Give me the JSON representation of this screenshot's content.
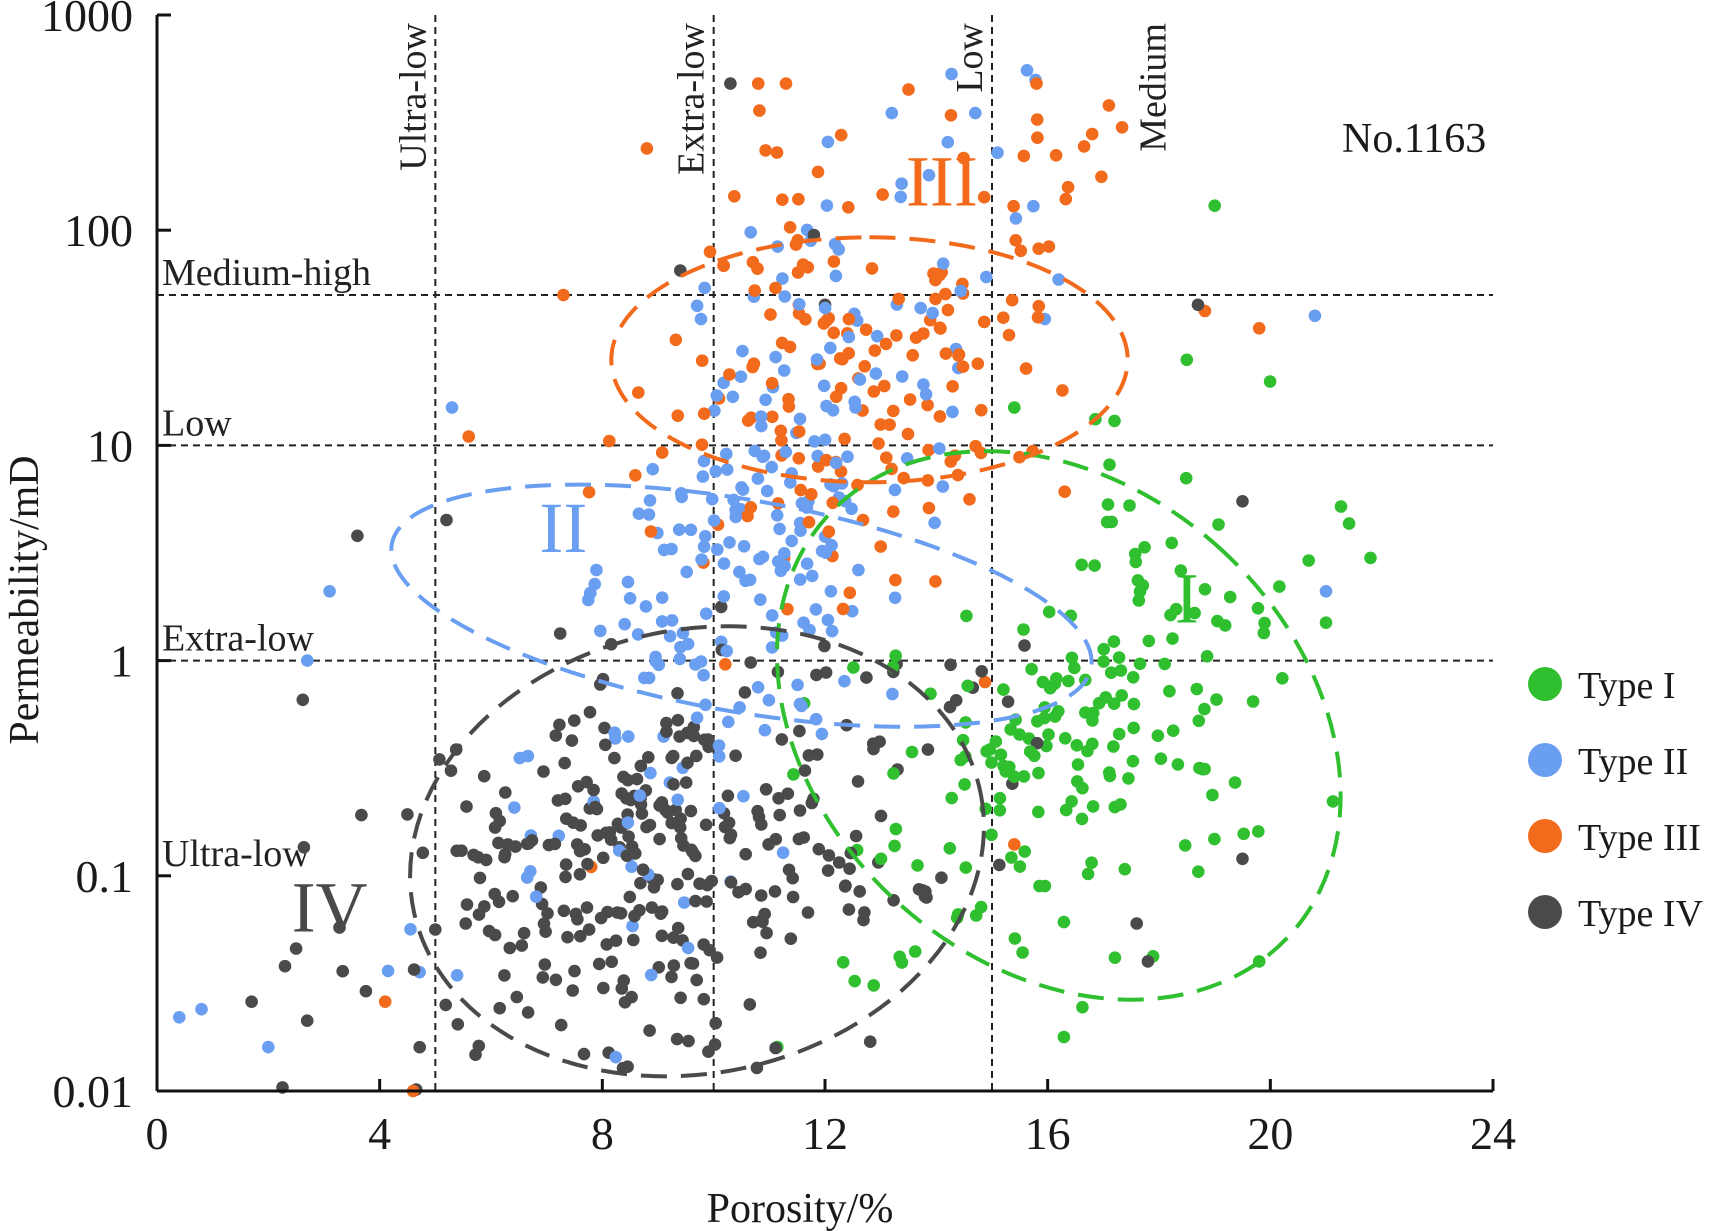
{
  "chart_data": {
    "type": "scatter",
    "sample_id": "No.1163",
    "xlabel": "Porosity/%",
    "ylabel": "Permeability/mD",
    "xlim": [
      0,
      24
    ],
    "ylim": [
      0.01,
      1000
    ],
    "yscale": "log",
    "x_ticks": [
      0,
      4,
      8,
      12,
      16,
      20,
      24
    ],
    "x_tick_labels": [
      "0",
      "4",
      "8",
      "12",
      "16",
      "20",
      "24"
    ],
    "y_ticks": [
      0.01,
      0.1,
      1,
      10,
      100,
      1000
    ],
    "y_tick_labels": [
      "0.01",
      "0.1",
      "1",
      "10",
      "100",
      "1000"
    ],
    "porosity_classes": [
      {
        "x": 5,
        "label": "Ultra-low"
      },
      {
        "x": 10,
        "label": "Extra-low"
      },
      {
        "x": 15,
        "label": "Low"
      },
      {
        "x": 18.3,
        "label": "Medium",
        "line": false
      }
    ],
    "permeability_classes": [
      {
        "y": 50,
        "label": "Medium-high"
      },
      {
        "y": 10,
        "label": "Low"
      },
      {
        "y": 1,
        "label": "Extra-low"
      },
      {
        "y": 0.1,
        "label": "Ultra-low",
        "line": false
      }
    ],
    "series": [
      {
        "name": "Type I",
        "legend_label": "Type I",
        "color": "#2fbf2f",
        "region_label": "I",
        "ellipse": {
          "cx": 16.2,
          "cy": 0.5,
          "rx": 4.3,
          "rlog": 1.45,
          "angle": 48
        },
        "cluster": {
          "cx": 16.5,
          "cy": 0.45,
          "sx": 2.2,
          "slog": 0.6,
          "n": 190,
          "rho": 0.55
        },
        "extra": [
          [
            19,
            130
          ],
          [
            19.8,
            0.04
          ],
          [
            21.8,
            3
          ],
          [
            21,
            1.5
          ],
          [
            15.4,
            15
          ],
          [
            17.2,
            13
          ],
          [
            18.5,
            25
          ]
        ]
      },
      {
        "name": "Type II",
        "legend_label": "Type  II",
        "color": "#6a9ef0",
        "region_label": "II",
        "ellipse": {
          "cx": 10.5,
          "cy": 1.8,
          "rx": 1.9,
          "rlog": 1.65,
          "angle": 80
        },
        "cluster": {
          "cx": 10.8,
          "cy": 3.5,
          "sx": 2.1,
          "slog": 0.9,
          "n": 250,
          "rho": 0.75
        },
        "extra": [
          [
            0.4,
            0.022
          ],
          [
            0.8,
            0.024
          ],
          [
            2,
            0.016
          ],
          [
            2.7,
            1
          ],
          [
            3.1,
            2.1
          ],
          [
            5.3,
            15
          ],
          [
            20.8,
            40
          ],
          [
            21,
            2.1
          ],
          [
            13.2,
            350
          ],
          [
            14.7,
            350
          ]
        ]
      },
      {
        "name": "Type III",
        "legend_label": "Type III",
        "color": "#f26a1b",
        "region_label": "III",
        "ellipse": {
          "cx": 12.8,
          "cy": 25,
          "rx": 2.2,
          "rlog": 1.2,
          "angle": 90
        },
        "cluster": {
          "cx": 12.8,
          "cy": 25,
          "sx": 1.9,
          "slog": 0.55,
          "n": 180,
          "rho": 0.2
        },
        "extra": [
          [
            8.8,
            240
          ],
          [
            10.8,
            480
          ],
          [
            11.3,
            480
          ],
          [
            13.5,
            450
          ],
          [
            15.8,
            480
          ],
          [
            16.8,
            280
          ],
          [
            17.1,
            380
          ],
          [
            19.8,
            35
          ],
          [
            7.3,
            50
          ],
          [
            5.6,
            11
          ],
          [
            4.1,
            0.026
          ],
          [
            4.6,
            0.01
          ],
          [
            7.8,
            0.11
          ],
          [
            15.4,
            0.14
          ]
        ]
      },
      {
        "name": "Type IV",
        "legend_label": "Type IV",
        "color": "#4a4a4a",
        "region_label": "IV",
        "ellipse": {
          "cx": 9.7,
          "cy": 0.13,
          "rx": 5.2,
          "rlog": 1.03,
          "angle": 12
        },
        "cluster": {
          "cx": 9.0,
          "cy": 0.12,
          "sx": 2.5,
          "slog": 0.5,
          "n": 330,
          "rho": 0.35
        },
        "extra": [
          [
            10.3,
            480
          ],
          [
            9.4,
            65
          ],
          [
            11.8,
            95
          ],
          [
            3.6,
            3.8
          ],
          [
            5.2,
            4.5
          ],
          [
            18.7,
            45
          ],
          [
            19.5,
            5.5
          ],
          [
            17.8,
            0.04
          ],
          [
            17.6,
            0.06
          ],
          [
            19.5,
            0.12
          ],
          [
            2.3,
            0.038
          ],
          [
            1.7,
            0.026
          ],
          [
            12,
            45
          ]
        ]
      }
    ]
  }
}
